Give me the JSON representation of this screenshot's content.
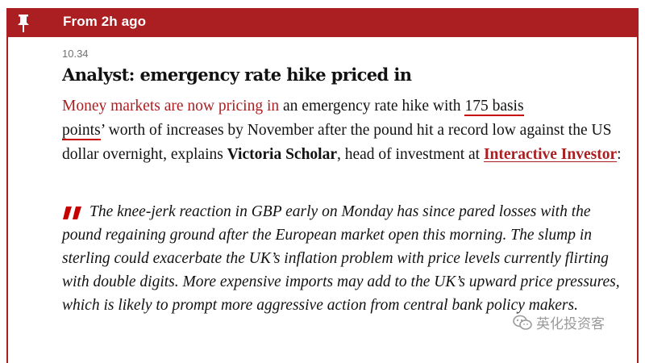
{
  "header": {
    "label": "From 2h ago",
    "pin_icon": "pin-icon",
    "color": "#ab1f22"
  },
  "post": {
    "time": "10.34",
    "headline": "Analyst: emergency rate hike priced in",
    "para": {
      "link1": "Money markets are now pricing in",
      "t1": " an emergency rate hike with ",
      "hl1": "175 basis",
      "hl2": "points",
      "t2": "’ worth of increases by November after the pound hit a record low against the US dollar overnight, explains ",
      "name": "Victoria Scholar",
      "t3": ", head of investment at ",
      "org": "Interactive Investor",
      "t4": ":"
    },
    "quote": "The knee-jerk reaction in GBP early on Monday has since pared losses with the pound regaining ground after the European market open this morning. The slump in sterling could exacerbate the UK’s inflation problem with price levels currently flirting with double digits. More expensive imports may add to the UK’s upward price pressures, which is likely to prompt more aggressive action from central bank policy makers.",
    "quote_icon": "quote-mark-icon"
  },
  "watermark": {
    "text": "英化投资客",
    "icon": "wechat-icon"
  }
}
